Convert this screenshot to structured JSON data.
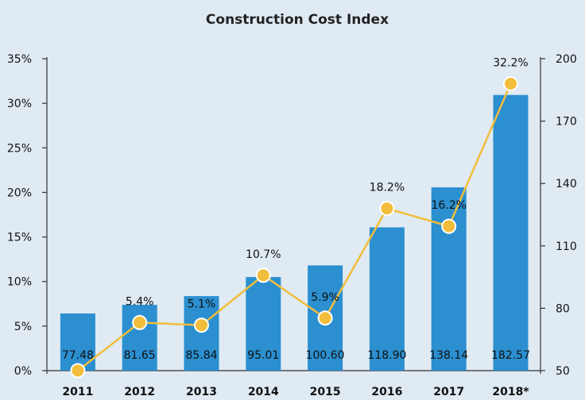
{
  "chart_data": {
    "type": "bar",
    "title": "Construction Cost Index",
    "categories": [
      "2011",
      "2012",
      "2013",
      "2014",
      "2015",
      "2016",
      "2017",
      "2018*"
    ],
    "bar_series": {
      "values": [
        77.48,
        81.65,
        85.84,
        95.01,
        100.6,
        118.9,
        138.14,
        182.57
      ],
      "labels": [
        "77.48",
        "81.65",
        "85.84",
        "95.01",
        "100.60",
        "118.90",
        "138.14",
        "182.57"
      ],
      "color": "#2b8fd0",
      "axis": "right"
    },
    "line_series": {
      "values": [
        0,
        5.4,
        5.1,
        10.7,
        5.9,
        18.2,
        16.2,
        32.2
      ],
      "labels": [
        "",
        "5.4%",
        "5.1%",
        "10.7%",
        "5.9%",
        "18.2%",
        "16.2%",
        "32.2%"
      ],
      "color": "#f2bd3a",
      "axis": "left"
    },
    "left_axis": {
      "ylim": [
        0,
        35
      ],
      "ticks": [
        "0%",
        "5%",
        "10%",
        "15%",
        "20%",
        "25%",
        "30%",
        "35%"
      ]
    },
    "right_axis": {
      "ylim": [
        50,
        200
      ],
      "ticks": [
        "50",
        "80",
        "110",
        "140",
        "170",
        "200"
      ]
    },
    "background": "#dfeaf3"
  }
}
